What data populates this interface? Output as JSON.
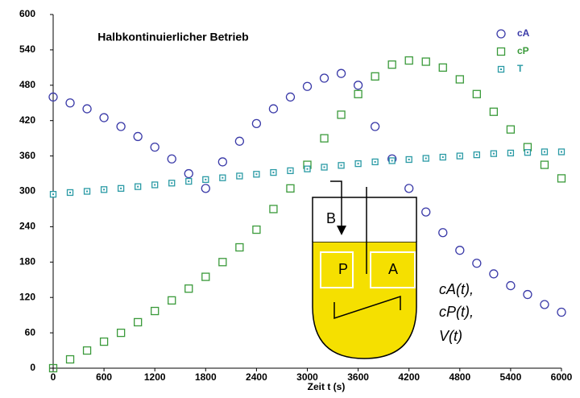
{
  "chart_data": {
    "type": "scatter",
    "title": "Halbkontinuierlicher Betrieb",
    "x_label": "Zeit t (s)",
    "x": [
      0,
      200,
      400,
      600,
      800,
      1000,
      1200,
      1400,
      1600,
      1800,
      2000,
      2200,
      2400,
      2600,
      2800,
      3000,
      3200,
      3400,
      3600,
      3800,
      4000,
      4200,
      4400,
      4600,
      4800,
      5000,
      5200,
      5400,
      5600,
      5800,
      6000
    ],
    "series": [
      {
        "name": "cA",
        "color": "#3a3aa8",
        "marker": "circle",
        "values": [
          460,
          450,
          440,
          425,
          410,
          393,
          375,
          355,
          330,
          305,
          350,
          385,
          415,
          440,
          460,
          478,
          492,
          500,
          480,
          410,
          355,
          305,
          265,
          230,
          200,
          178,
          160,
          140,
          125,
          108,
          95
        ]
      },
      {
        "name": "cP",
        "color": "#3a9a3a",
        "marker": "square",
        "values": [
          0,
          15,
          30,
          45,
          60,
          78,
          97,
          115,
          135,
          155,
          180,
          205,
          235,
          270,
          305,
          345,
          390,
          430,
          465,
          495,
          515,
          522,
          520,
          510,
          490,
          465,
          435,
          405,
          375,
          345,
          322
        ]
      },
      {
        "name": "T",
        "color": "#2a9aa5",
        "marker": "dotted-square",
        "values": [
          295,
          298,
          300,
          303,
          305,
          308,
          311,
          314,
          317,
          320,
          323,
          326,
          329,
          332,
          335,
          338,
          341,
          344,
          347,
          350,
          352,
          354,
          356,
          358,
          360,
          362,
          364,
          365,
          366,
          367,
          367
        ]
      }
    ],
    "xlim": [
      0,
      6000
    ],
    "xticks": [
      0,
      600,
      1200,
      1800,
      2400,
      3000,
      3600,
      4200,
      4800,
      5400,
      6000
    ],
    "ylim": [
      0,
      600
    ],
    "yticks": [
      0,
      60,
      120,
      180,
      240,
      300,
      360,
      420,
      480,
      540,
      600
    ],
    "grid": false,
    "legend": "top-right",
    "annotations": [
      "B",
      "P",
      "A",
      "cA(t),",
      "cP(t),",
      "V(t)"
    ]
  }
}
